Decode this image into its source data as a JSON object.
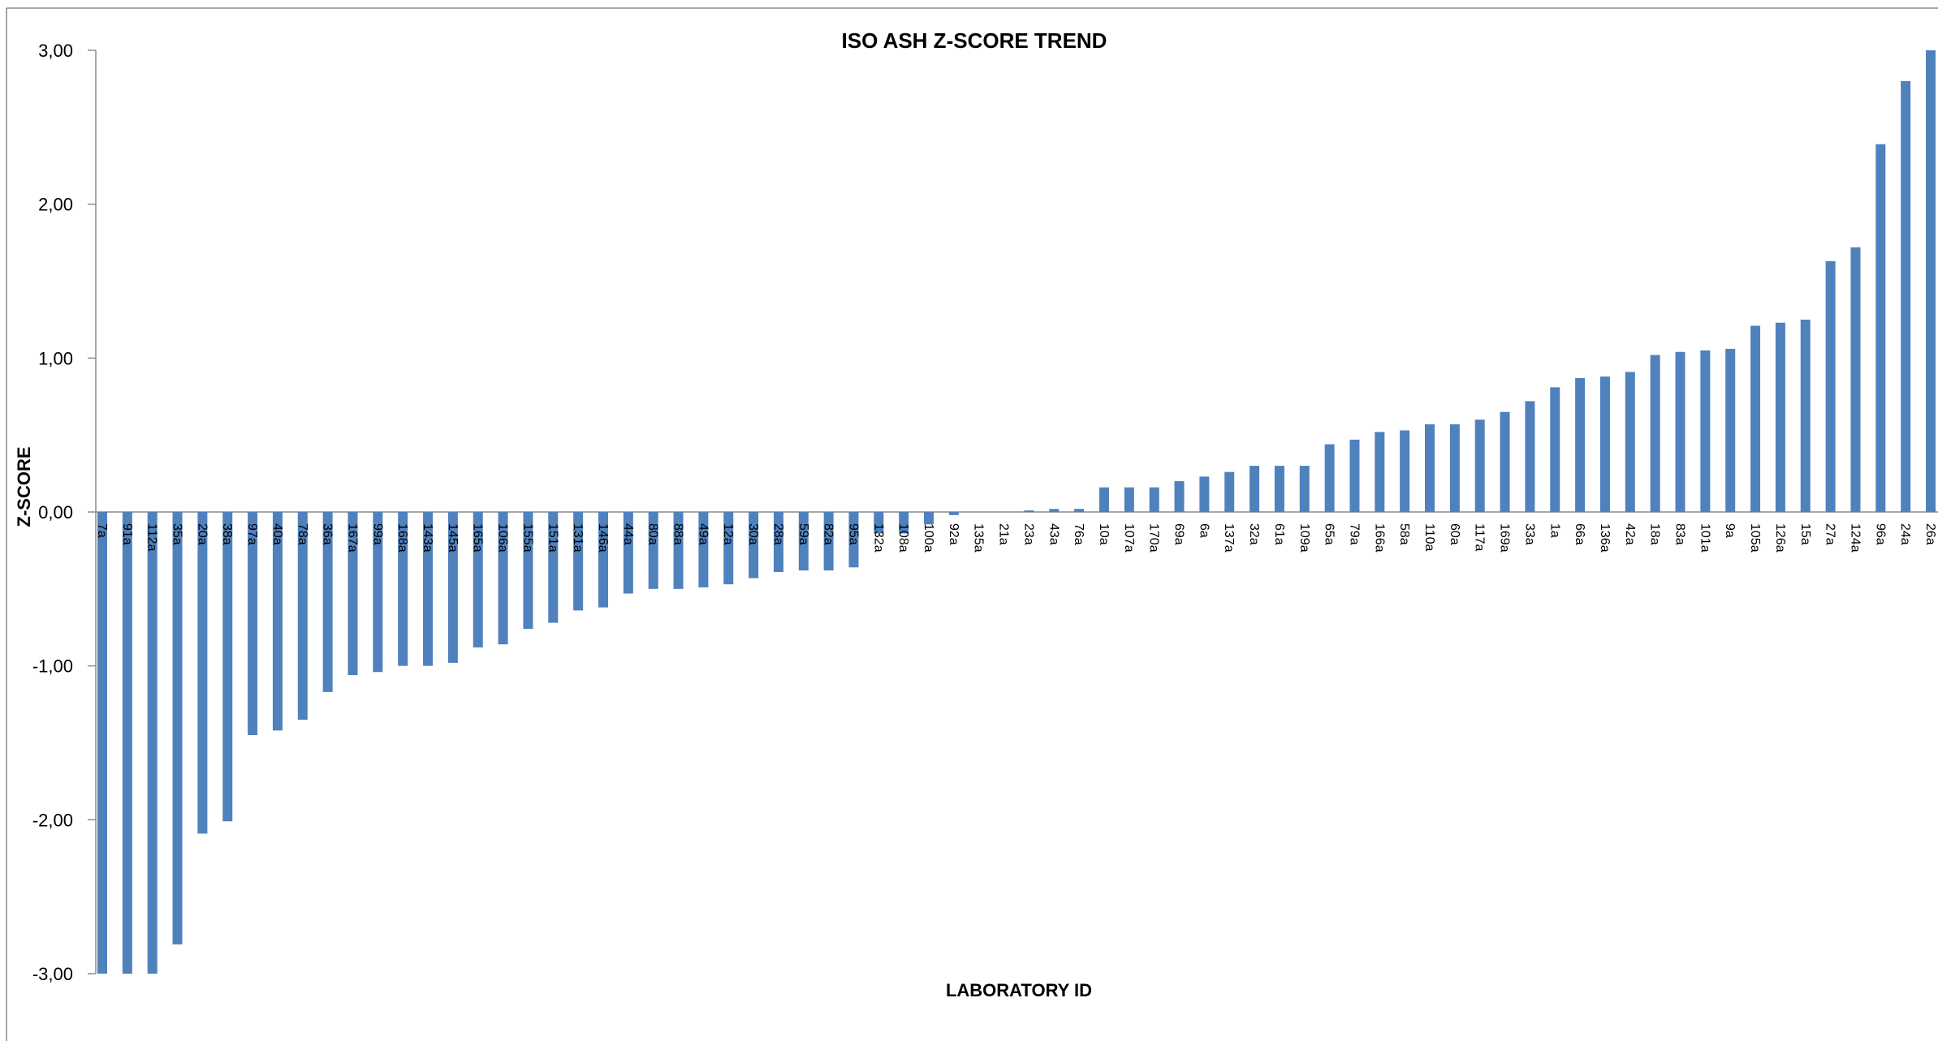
{
  "chart_data": {
    "type": "bar",
    "title": "ISO ASH Z-SCORE TREND",
    "xlabel": "LABORATORY ID",
    "ylabel": "Z-SCORE",
    "ylim": [
      -3,
      3
    ],
    "yticks": [
      "3,00",
      "2,00",
      "1,00",
      "0,00",
      "-1,00",
      "-2,00",
      "-3,00"
    ],
    "ytick_values": [
      3,
      2,
      1,
      0,
      -1,
      -2,
      -3
    ],
    "grid": false,
    "legend": "none",
    "bar_color": "#4f81bd",
    "categories": [
      "7a",
      "91a",
      "112a",
      "35a",
      "20a",
      "38a",
      "97a",
      "40a",
      "78a",
      "36a",
      "167a",
      "99a",
      "168a",
      "143a",
      "145a",
      "165a",
      "106a",
      "155a",
      "151a",
      "131a",
      "146a",
      "44a",
      "80a",
      "88a",
      "49a",
      "12a",
      "30a",
      "28a",
      "59a",
      "82a",
      "95a",
      "132a",
      "108a",
      "100a",
      "92a",
      "135a",
      "21a",
      "23a",
      "43a",
      "76a",
      "10a",
      "107a",
      "170a",
      "69a",
      "6a",
      "137a",
      "32a",
      "61a",
      "109a",
      "65a",
      "79a",
      "166a",
      "58a",
      "110a",
      "60a",
      "117a",
      "169a",
      "33a",
      "1a",
      "66a",
      "136a",
      "42a",
      "18a",
      "83a",
      "101a",
      "9a",
      "105a",
      "126a",
      "15a",
      "27a",
      "124a",
      "96a",
      "24a",
      "26a"
    ],
    "values": [
      -3.0,
      -3.0,
      -3.0,
      -2.81,
      -2.09,
      -2.01,
      -1.45,
      -1.42,
      -1.35,
      -1.17,
      -1.06,
      -1.04,
      -1.0,
      -1.0,
      -0.98,
      -0.88,
      -0.86,
      -0.76,
      -0.72,
      -0.64,
      -0.62,
      -0.53,
      -0.5,
      -0.5,
      -0.49,
      -0.47,
      -0.43,
      -0.39,
      -0.38,
      -0.38,
      -0.36,
      -0.14,
      -0.14,
      -0.08,
      -0.02,
      0.0,
      0.0,
      0.01,
      0.02,
      0.02,
      0.16,
      0.16,
      0.16,
      0.2,
      0.23,
      0.26,
      0.3,
      0.3,
      0.3,
      0.44,
      0.47,
      0.52,
      0.53,
      0.57,
      0.57,
      0.6,
      0.65,
      0.72,
      0.81,
      0.87,
      0.88,
      0.91,
      1.02,
      1.04,
      1.05,
      1.06,
      1.21,
      1.23,
      1.25,
      1.63,
      1.72,
      2.39,
      2.8,
      3.0
    ]
  }
}
